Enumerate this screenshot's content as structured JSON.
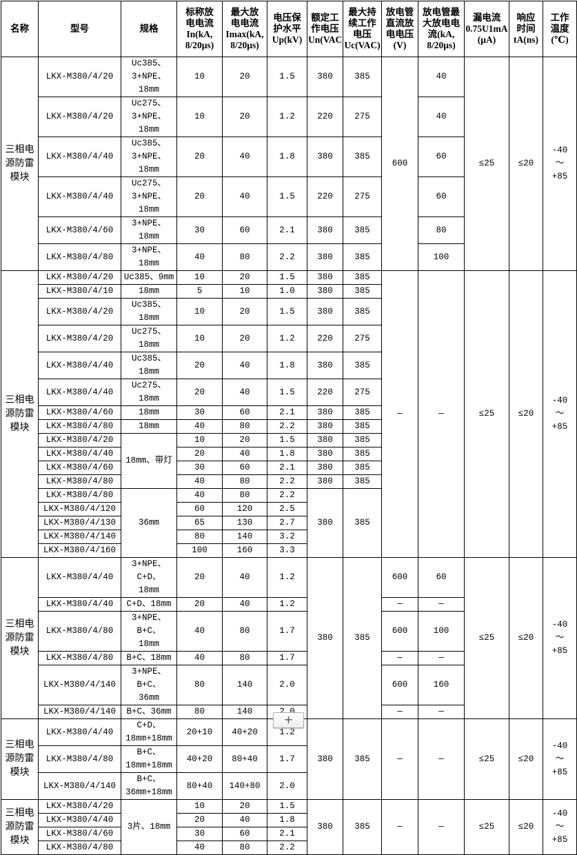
{
  "header": [
    "名称",
    "型号",
    "规格",
    "标称放\n电电流\nIn(kA,\n8/20μs)",
    "最大放\n电电流\nImax(kA,\n8/20μs)",
    "电压保\n护水平\nUp(kV)",
    "额定工\n作电压\nUn(VAC)",
    "最大持\n续工作\n电压\nUc(VAC)",
    "放电管\n直流放\n电电压\n(V)",
    "放电管最\n大放电电\n流(kA,\n8/20μs)",
    "漏电流\n0.75U1mA\n(μA)",
    "响应\n时间\ntA(ns)",
    "工作\n温度\n(℃)"
  ],
  "rows": [
    [
      {
        "t": "三相电\n源防雷\n模块",
        "rs": 6
      },
      "LKX-M380/4/20",
      "Uc385、\n3+NPE、18mm",
      "10",
      "20",
      "1.5",
      "380",
      "385",
      {
        "t": "600",
        "rs": 6
      },
      "40",
      {
        "t": "≤25",
        "rs": 6
      },
      {
        "t": "≤20",
        "rs": 6
      },
      {
        "t": "-40\n～\n+85",
        "rs": 6
      }
    ],
    [
      "LKX-M380/4/20",
      "Uc275、\n3+NPE、18mm",
      "10",
      "20",
      "1.2",
      "220",
      "275",
      "40"
    ],
    [
      "LKX-M380/4/40",
      "Uc385、\n3+NPE、18mm",
      "20",
      "40",
      "1.8",
      "380",
      "385",
      "60"
    ],
    [
      "LKX-M380/4/40",
      "Uc275、\n3+NPE、18mm",
      "20",
      "40",
      "1.5",
      "220",
      "275",
      "60"
    ],
    [
      "LKX-M380/4/60",
      "3+NPE、18mm",
      "30",
      "60",
      "2.1",
      "380",
      "385",
      "80"
    ],
    [
      "LKX-M380/4/80",
      "3+NPE、18mm",
      "40",
      "80",
      "2.2",
      "380",
      "385",
      "100"
    ],
    [
      {
        "t": "三相电\n源防雷\n模块",
        "rs": 17
      },
      "LKX-M380/4/20",
      "Uc385、9mm",
      "10",
      "20",
      "1.5",
      "380",
      "385",
      {
        "t": "—",
        "rs": 17
      },
      {
        "t": "—",
        "rs": 17
      },
      {
        "t": "≤25",
        "rs": 17
      },
      {
        "t": "≤20",
        "rs": 17
      },
      {
        "t": "-40\n～\n+85",
        "rs": 17
      }
    ],
    [
      "LKX-M380/4/10",
      "18mm",
      "5",
      "10",
      "1.0",
      "380",
      "385"
    ],
    [
      "LKX-M380/4/20",
      "Uc385、18mm",
      "10",
      "20",
      "1.5",
      "380",
      "385"
    ],
    [
      "LKX-M380/4/20",
      "Uc275、18mm",
      "10",
      "20",
      "1.2",
      "220",
      "275"
    ],
    [
      "LKX-M380/4/40",
      "Uc385、18mm",
      "20",
      "40",
      "1.8",
      "380",
      "385"
    ],
    [
      "LKX-M380/4/40",
      "Uc275、18mm",
      "20",
      "40",
      "1.5",
      "220",
      "275"
    ],
    [
      "LKX-M380/4/60",
      "18mm",
      "30",
      "60",
      "2.1",
      "380",
      "385"
    ],
    [
      "LKX-M380/4/80",
      "18mm",
      "40",
      "80",
      "2.2",
      "380",
      "385"
    ],
    [
      "LKX-M380/4/20",
      {
        "t": "18mm、带灯",
        "rs": 4
      },
      "10",
      "20",
      "1.5",
      "380",
      "385"
    ],
    [
      "LKX-M380/4/40",
      "20",
      "40",
      "1.8",
      "380",
      "385"
    ],
    [
      "LKX-M380/4/60",
      "30",
      "60",
      "2.1",
      "380",
      "385"
    ],
    [
      "LKX-M380/4/80",
      "40",
      "80",
      "2.2",
      "380",
      "385"
    ],
    [
      "LKX-M380/4/80",
      {
        "t": "36mm",
        "rs": 5
      },
      "40",
      "80",
      "2.2",
      {
        "t": "380",
        "rs": 5
      },
      {
        "t": "385",
        "rs": 5
      }
    ],
    [
      "LKX-M380/4/120",
      "60",
      "120",
      "2.5"
    ],
    [
      "LKX-M380/4/130",
      "65",
      "130",
      "2.7"
    ],
    [
      "LKX-M380/4/140",
      "80",
      "140",
      "3.2"
    ],
    [
      "LKX-M380/4/160",
      "100",
      "160",
      "3.3"
    ],
    [
      {
        "t": "三相电\n源防雷\n模块",
        "rs": 6
      },
      "LKX-M380/4/40",
      "3+NPE、C+D、\n18mm",
      "20",
      "40",
      "1.2",
      {
        "t": "380",
        "rs": 6
      },
      {
        "t": "385",
        "rs": 6
      },
      "600",
      "60",
      {
        "t": "≤25",
        "rs": 6
      },
      {
        "t": "≤20",
        "rs": 6
      },
      {
        "t": "-40\n～\n+85",
        "rs": 6
      }
    ],
    [
      "LKX-M380/4/40",
      "C+D、18mm",
      "20",
      "40",
      "1.2",
      "—",
      "—"
    ],
    [
      "LKX-M380/4/80",
      "3+NPE、B+C、\n18mm",
      "40",
      "80",
      "1.7",
      "600",
      "100"
    ],
    [
      "LKX-M380/4/80",
      "B+C、18mm",
      "40",
      "80",
      "1.7",
      "—",
      "—"
    ],
    [
      "LKX-M380/4/140",
      "3+NPE、B+C、\n36mm",
      "80",
      "140",
      "2.0",
      "600",
      "160"
    ],
    [
      "LKX-M380/4/140",
      "B+C、36mm",
      "80",
      "140",
      "2.0",
      "—",
      "—"
    ],
    [
      {
        "t": "三相电\n源防雷\n模块",
        "rs": 3
      },
      "LKX-M380/4/40",
      "C+D、\n18mm+18mm",
      "20+10",
      "40+20",
      "1.2",
      {
        "t": "380",
        "rs": 3
      },
      {
        "t": "385",
        "rs": 3
      },
      {
        "t": "—",
        "rs": 3
      },
      {
        "t": "—",
        "rs": 3
      },
      {
        "t": "≤25",
        "rs": 3
      },
      {
        "t": "≤20",
        "rs": 3
      },
      {
        "t": "-40\n～\n+85",
        "rs": 3
      }
    ],
    [
      "LKX-M380/4/80",
      "B+C、\n18mm+18mm",
      "40+20",
      "80+40",
      "1.7"
    ],
    [
      "LKX-M380/4/140",
      "B+C、\n36mm+18mm",
      "80+40",
      "140+80",
      "2.0"
    ],
    [
      {
        "t": "三相电\n源防雷\n模块",
        "rs": 4
      },
      "LKX-M380/4/20",
      {
        "t": "3片、18mm",
        "rs": 4
      },
      "10",
      "20",
      "1.5",
      {
        "t": "380",
        "rs": 4
      },
      {
        "t": "385",
        "rs": 4
      },
      {
        "t": "—",
        "rs": 4
      },
      {
        "t": "—",
        "rs": 4
      },
      {
        "t": "≤25",
        "rs": 4
      },
      {
        "t": "≤20",
        "rs": 4
      },
      {
        "t": "-40\n～\n+85",
        "rs": 4
      }
    ],
    [
      "LKX-M380/4/40",
      "20",
      "40",
      "1.8"
    ],
    [
      "LKX-M380/4/60",
      "30",
      "60",
      "2.1"
    ],
    [
      "LKX-M380/4/80",
      "40",
      "80",
      "2.2"
    ]
  ],
  "add_button": {
    "label": "+",
    "icon": "plus-icon"
  }
}
